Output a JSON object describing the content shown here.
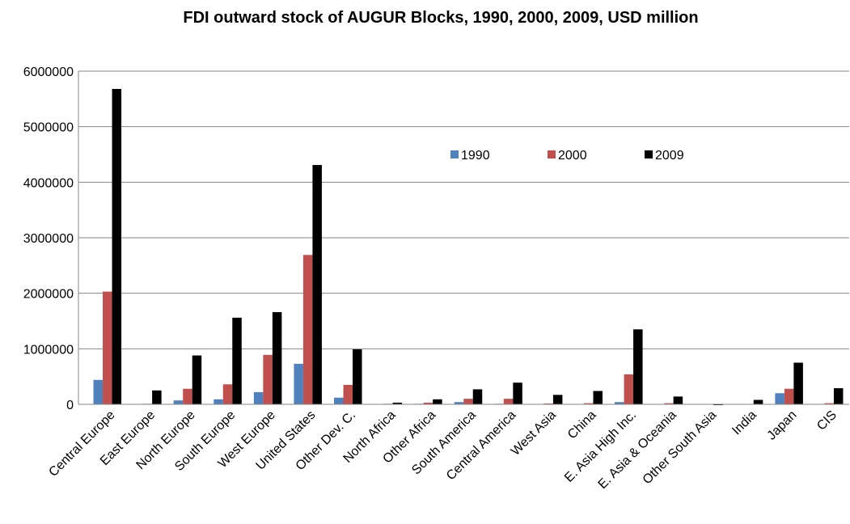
{
  "chart_data": {
    "type": "bar",
    "title": "FDI outward stock of AUGUR Blocks, 1990, 2000, 2009, USD million",
    "categories": [
      "Central Europe",
      "East Europe",
      "North Europe",
      "South Europe",
      "West Europe",
      "United States",
      "Other Dev. C.",
      "North Africa",
      "Other Africa",
      "South America",
      "Central America",
      "West Asia",
      "China",
      "E. Asia High Inc.",
      "E. Asia & Oceania",
      "Other South Asia",
      "India",
      "Japan",
      "CIS"
    ],
    "series": [
      {
        "name": "1990",
        "color": "#4f81bd",
        "values": [
          440000,
          5000,
          70000,
          90000,
          220000,
          730000,
          120000,
          5000,
          10000,
          40000,
          10000,
          5000,
          5000,
          40000,
          5000,
          0,
          0,
          200000,
          0
        ]
      },
      {
        "name": "2000",
        "color": "#c0504d",
        "values": [
          2030000,
          10000,
          280000,
          360000,
          890000,
          2690000,
          350000,
          10000,
          30000,
          100000,
          100000,
          15000,
          20000,
          540000,
          20000,
          0,
          5000,
          280000,
          20000
        ]
      },
      {
        "name": "2009",
        "color": "#000000",
        "values": [
          5680000,
          250000,
          880000,
          1560000,
          1660000,
          4310000,
          990000,
          30000,
          90000,
          270000,
          390000,
          170000,
          240000,
          1350000,
          140000,
          -15000,
          80000,
          750000,
          290000
        ]
      }
    ],
    "ylim": [
      0,
      6000000
    ],
    "yticks": [
      0,
      1000000,
      2000000,
      3000000,
      4000000,
      5000000,
      6000000
    ],
    "grid": true
  }
}
